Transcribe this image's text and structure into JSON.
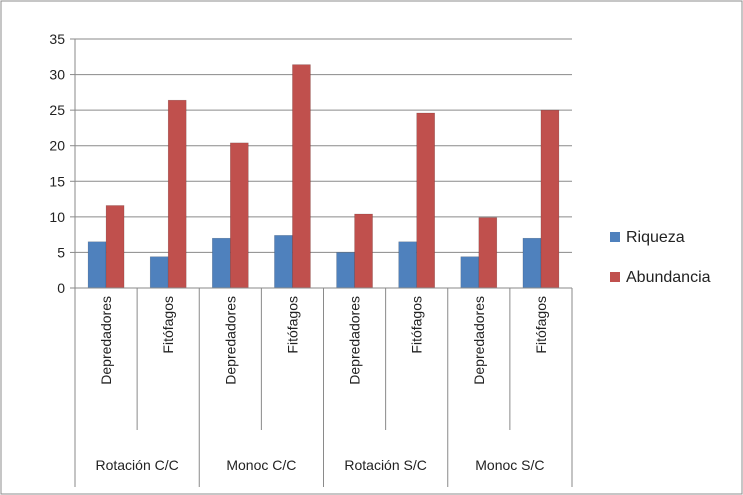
{
  "chart_data": {
    "type": "bar",
    "title": "",
    "xlabel": "",
    "ylabel": "",
    "ylim": [
      0,
      35
    ],
    "yticks": [
      0,
      5,
      10,
      15,
      20,
      25,
      30,
      35
    ],
    "grid": true,
    "legend_position": "right",
    "groups": [
      "Rotación C/C",
      "Monoc C/C",
      "Rotación S/C",
      "Monoc S/C"
    ],
    "categories": [
      "Depredadores",
      "Fitófagos",
      "Depredadores",
      "Fitófagos",
      "Depredadores",
      "Fitófagos",
      "Depredadores",
      "Fitófagos"
    ],
    "series": [
      {
        "name": "Riqueza",
        "color": "#4F81BD",
        "values": [
          6.5,
          4.4,
          7.0,
          7.4,
          5.0,
          6.5,
          4.4,
          7.0
        ]
      },
      {
        "name": "Abundancia",
        "color": "#C0504D",
        "values": [
          11.6,
          26.4,
          20.4,
          31.4,
          10.4,
          24.6,
          9.9,
          25.0
        ]
      }
    ]
  }
}
